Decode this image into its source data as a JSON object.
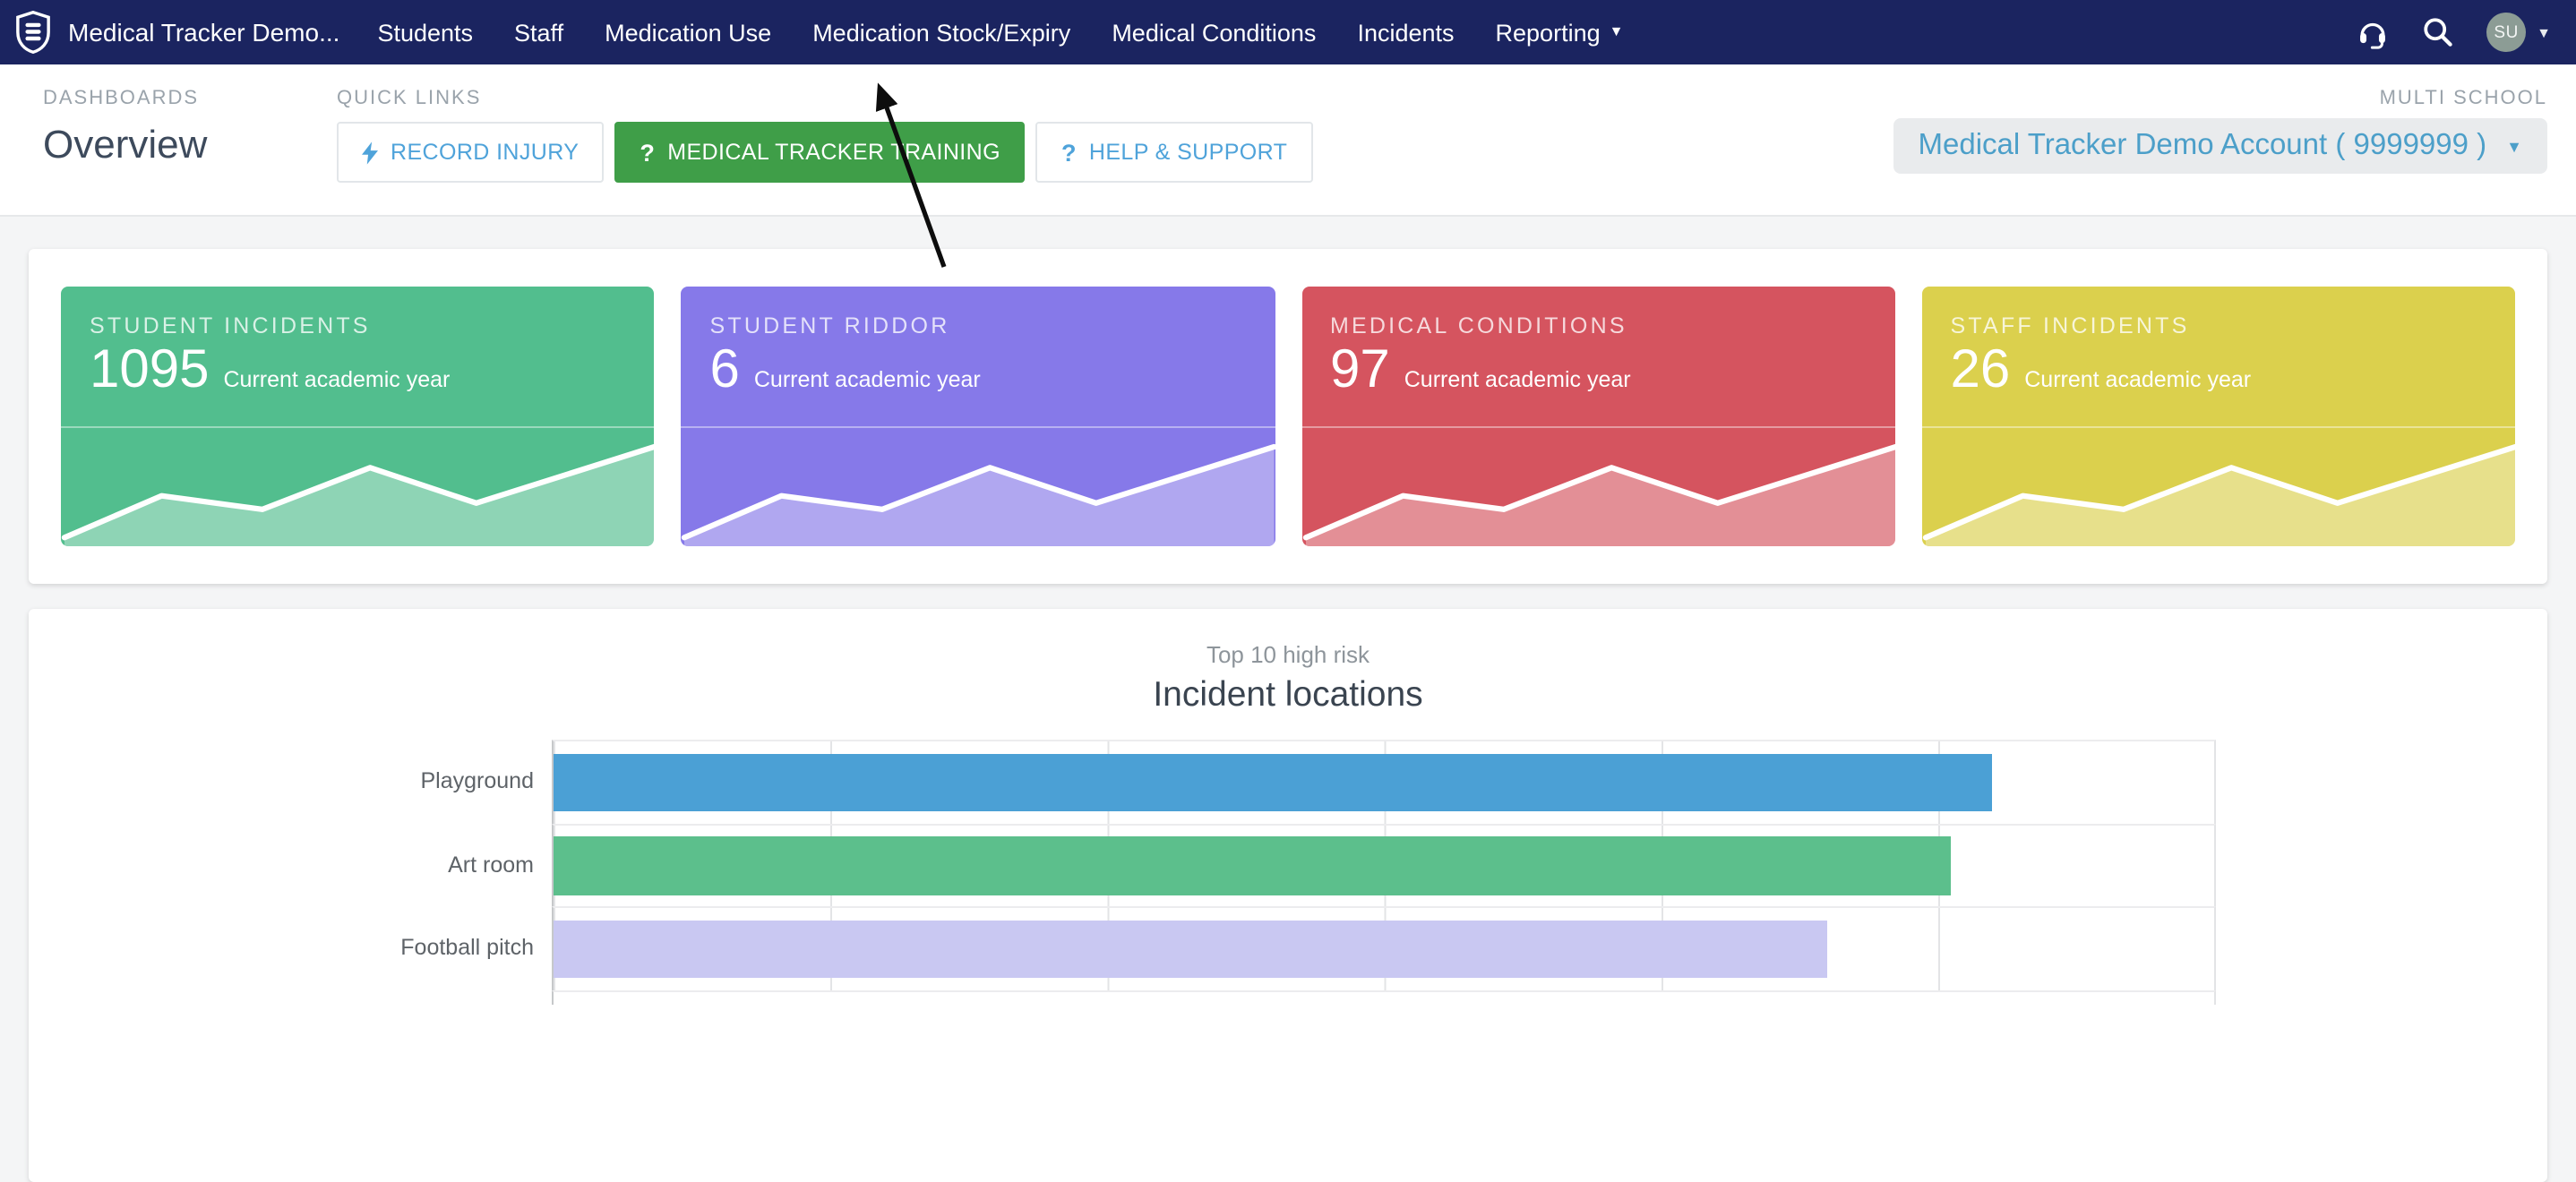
{
  "navbar": {
    "brand": "Medical Tracker Demo...",
    "items": [
      {
        "label": "Students",
        "caret": false
      },
      {
        "label": "Staff",
        "caret": false
      },
      {
        "label": "Medication Use",
        "caret": false
      },
      {
        "label": "Medication Stock/Expiry",
        "caret": false
      },
      {
        "label": "Medical Conditions",
        "caret": false
      },
      {
        "label": "Incidents",
        "caret": false
      },
      {
        "label": "Reporting",
        "caret": true
      }
    ],
    "avatar_initials": "SU",
    "background_color": "#1b2460"
  },
  "header": {
    "section_label": "DASHBOARDS",
    "page_title": "Overview",
    "quick_links_label": "QUICK LINKS",
    "quick_links": [
      {
        "label": "RECORD INJURY",
        "icon": "bolt-icon",
        "variant": "outline"
      },
      {
        "label": "MEDICAL TRACKER TRAINING",
        "icon": "question-icon",
        "variant": "solid-green"
      },
      {
        "label": "HELP & SUPPORT",
        "icon": "question-icon",
        "variant": "outline"
      }
    ],
    "multi_school_label": "MULTI SCHOOL",
    "school_selector_value": "Medical Tracker Demo Account ( 9999999 )",
    "accent_blue": "#4fa3da",
    "accent_green": "#3f9e48"
  },
  "annotation": {
    "arrow_target": "Medication Stock/Expiry"
  },
  "stat_cards": [
    {
      "title": "STUDENT INCIDENTS",
      "value": "1095",
      "subtitle": "Current academic year",
      "color": "#52be8e",
      "sparkline_trend": [
        5,
        45,
        32,
        72,
        38,
        92
      ]
    },
    {
      "title": "STUDENT RIDDOR",
      "value": "6",
      "subtitle": "Current academic year",
      "color": "#8679e9",
      "sparkline_trend": [
        5,
        45,
        32,
        72,
        38,
        92
      ]
    },
    {
      "title": "MEDICAL CONDITIONS",
      "value": "97",
      "subtitle": "Current academic year",
      "color": "#d5545f",
      "sparkline_trend": [
        5,
        45,
        32,
        72,
        38,
        92
      ]
    },
    {
      "title": "STAFF INCIDENTS",
      "value": "26",
      "subtitle": "Current academic year",
      "color": "#dbd04d",
      "sparkline_trend": [
        5,
        45,
        32,
        72,
        38,
        92
      ]
    }
  ],
  "chart_data": {
    "type": "bar",
    "orientation": "horizontal",
    "subtitle": "Top 10 high risk",
    "title": "Incident locations",
    "categories": [
      "Playground",
      "Art room",
      "Football pitch"
    ],
    "values": [
      5.2,
      5.05,
      4.6
    ],
    "xlim": [
      0,
      6
    ],
    "grid": true,
    "x_tick_labels": [],
    "legend": "none",
    "bar_colors": [
      "#4ba0d5",
      "#5cbf8c",
      "#c9c8f2"
    ]
  }
}
